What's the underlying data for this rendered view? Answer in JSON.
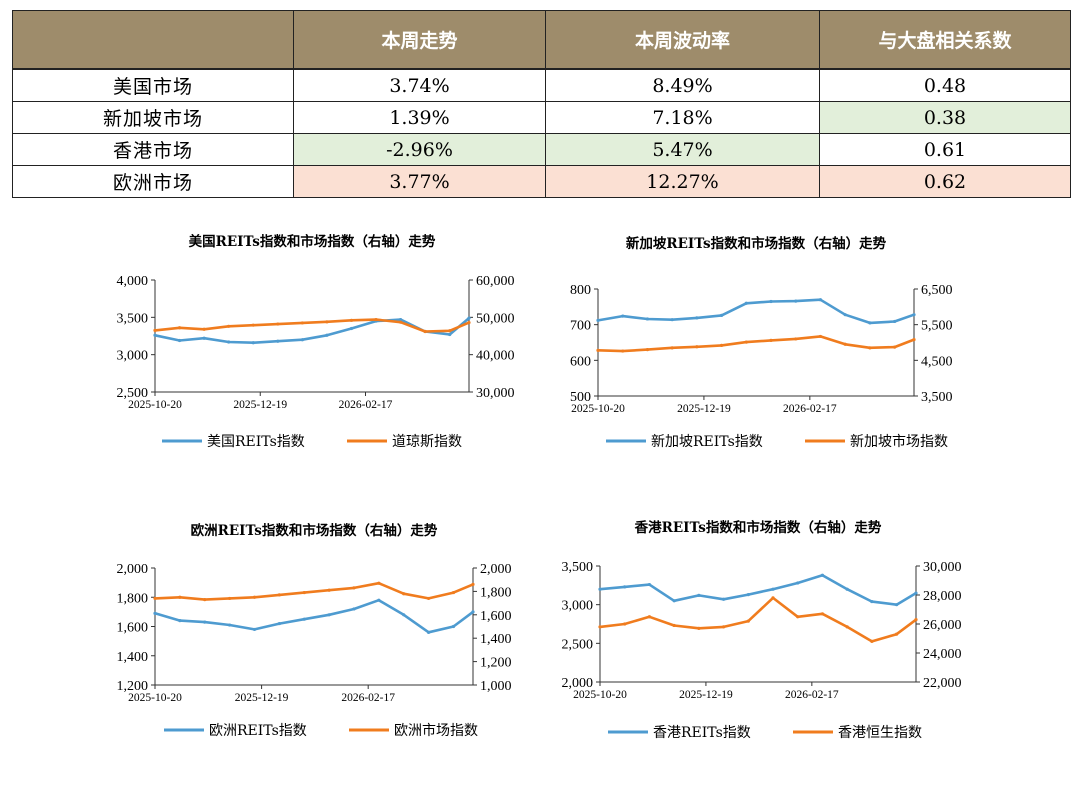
{
  "table": {
    "headers": [
      "",
      "本周走势",
      "本周波动率",
      "与大盘相关系数"
    ],
    "rows": [
      {
        "label": "美国市场",
        "cells": [
          "3.74%",
          "8.49%",
          "0.48"
        ],
        "bg": [
          "",
          "",
          ""
        ]
      },
      {
        "label": "新加坡市场",
        "cells": [
          "1.39%",
          "7.18%",
          "0.38"
        ],
        "bg": [
          "",
          "",
          "green"
        ]
      },
      {
        "label": "香港市场",
        "cells": [
          "-2.96%",
          "5.47%",
          "0.61"
        ],
        "bg": [
          "green",
          "green",
          ""
        ]
      },
      {
        "label": "欧洲市场",
        "cells": [
          "3.77%",
          "12.27%",
          "0.62"
        ],
        "bg": [
          "pink",
          "pink",
          "pink"
        ]
      }
    ]
  },
  "colors": {
    "reit": "#4e9bd0",
    "market": "#f07c1e",
    "header_bg": "#9e8c6b",
    "green": "#e2efda",
    "pink": "#fbe0d3"
  },
  "chart_data": [
    {
      "type": "line",
      "title": "美国REITs指数和市场指数（右轴）走势",
      "x_ticks": [
        "2025-10-20",
        "2025-12-19",
        "2026-02-17"
      ],
      "x": [
        "2025-10-20",
        "2025-11-03",
        "2025-11-17",
        "2025-12-01",
        "2025-12-15",
        "2025-12-29",
        "2026-01-12",
        "2026-01-26",
        "2026-02-09",
        "2026-02-23",
        "2026-03-09",
        "2026-03-23",
        "2026-04-06",
        "2026-04-17"
      ],
      "ylim_left": [
        2500,
        4000
      ],
      "yticks_left": [
        "4,000",
        "3,500",
        "3,000",
        "2,500"
      ],
      "ylim_right": [
        30000,
        60000
      ],
      "yticks_right": [
        "60,000",
        "50,000",
        "40,000",
        "30,000"
      ],
      "series": [
        {
          "name": "美国REITs指数",
          "axis": "left",
          "values": [
            3260,
            3190,
            3220,
            3170,
            3160,
            3180,
            3200,
            3260,
            3350,
            3450,
            3470,
            3310,
            3270,
            3490
          ]
        },
        {
          "name": "道琼斯指数",
          "axis": "right",
          "values": [
            46500,
            47200,
            46800,
            47600,
            47900,
            48200,
            48500,
            48800,
            49200,
            49400,
            48700,
            46200,
            46400,
            48600
          ]
        }
      ]
    },
    {
      "type": "line",
      "title": "新加坡REITs指数和市场指数（右轴）走势",
      "x_ticks": [
        "2025-10-20",
        "2025-12-19",
        "2026-02-17"
      ],
      "x": [
        "2025-10-20",
        "2025-11-03",
        "2025-11-17",
        "2025-12-01",
        "2025-12-15",
        "2025-12-29",
        "2026-01-12",
        "2026-01-26",
        "2026-02-09",
        "2026-02-23",
        "2026-03-09",
        "2026-03-23",
        "2026-04-06",
        "2026-04-17"
      ],
      "ylim_left": [
        500,
        800
      ],
      "yticks_left": [
        "800",
        "700",
        "600",
        "500"
      ],
      "ylim_right": [
        3500,
        6500
      ],
      "yticks_right": [
        "6,500",
        "5,500",
        "4,500",
        "3,500"
      ],
      "series": [
        {
          "name": "新加坡REITs指数",
          "axis": "left",
          "values": [
            712,
            724,
            716,
            714,
            719,
            726,
            760,
            765,
            766,
            770,
            728,
            705,
            709,
            728
          ]
        },
        {
          "name": "新加坡市场指数",
          "axis": "right",
          "values": [
            4780,
            4760,
            4800,
            4850,
            4880,
            4920,
            5010,
            5060,
            5100,
            5170,
            4950,
            4850,
            4870,
            5080
          ]
        }
      ]
    },
    {
      "type": "line",
      "title": "欧洲REITs指数和市场指数（右轴）走势",
      "x_ticks": [
        "2025-10-20",
        "2025-12-19",
        "2026-02-17"
      ],
      "x": [
        "2025-10-20",
        "2025-11-03",
        "2025-11-17",
        "2025-12-01",
        "2025-12-15",
        "2025-12-29",
        "2026-01-12",
        "2026-01-26",
        "2026-02-09",
        "2026-02-23",
        "2026-03-09",
        "2026-03-23",
        "2026-04-06",
        "2026-04-17"
      ],
      "ylim_left": [
        1200,
        2000
      ],
      "yticks_left": [
        "2,000",
        "1,800",
        "1,600",
        "1,400",
        "1,200"
      ],
      "ylim_right": [
        1000,
        2000
      ],
      "yticks_right": [
        "2,000",
        "1,800",
        "1,600",
        "1,400",
        "1,200",
        "1,000"
      ],
      "series": [
        {
          "name": "欧洲REITs指数",
          "axis": "left",
          "values": [
            1690,
            1640,
            1630,
            1610,
            1580,
            1620,
            1650,
            1680,
            1720,
            1780,
            1680,
            1560,
            1600,
            1700
          ]
        },
        {
          "name": "欧洲市场指数",
          "axis": "right",
          "values": [
            1740,
            1750,
            1730,
            1740,
            1750,
            1770,
            1790,
            1810,
            1830,
            1870,
            1780,
            1740,
            1790,
            1860
          ]
        }
      ]
    },
    {
      "type": "line",
      "title": "香港REITs指数和市场指数（右轴）走势",
      "x_ticks": [
        "2025-10-20",
        "2025-12-19",
        "2026-02-17"
      ],
      "x": [
        "2025-10-20",
        "2025-11-03",
        "2025-11-17",
        "2025-12-01",
        "2025-12-15",
        "2025-12-29",
        "2026-01-12",
        "2026-01-26",
        "2026-02-09",
        "2026-02-23",
        "2026-03-09",
        "2026-03-23",
        "2026-04-06",
        "2026-04-17"
      ],
      "ylim_left": [
        2000,
        3500
      ],
      "yticks_left": [
        "3,500",
        "3,000",
        "2,500",
        "2,000"
      ],
      "ylim_right": [
        22000,
        30000
      ],
      "yticks_right": [
        "30,000",
        "28,000",
        "26,000",
        "24,000",
        "22,000"
      ],
      "series": [
        {
          "name": "香港REITs指数",
          "axis": "left",
          "values": [
            3200,
            3230,
            3260,
            3050,
            3120,
            3070,
            3130,
            3200,
            3280,
            3380,
            3200,
            3040,
            3000,
            3150
          ]
        },
        {
          "name": "香港恒生指数",
          "axis": "right",
          "values": [
            25800,
            26000,
            26500,
            25900,
            25700,
            25800,
            26200,
            27800,
            26500,
            26700,
            25800,
            24800,
            25300,
            26300
          ]
        }
      ]
    }
  ]
}
